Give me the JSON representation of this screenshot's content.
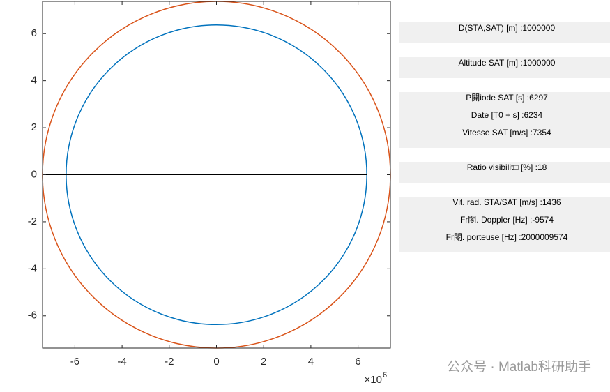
{
  "chart_data": {
    "type": "circle",
    "xlim": [
      -7.371,
      7.371
    ],
    "ylim": [
      -7.371,
      7.371
    ],
    "xticks": [
      -6,
      -4,
      -2,
      0,
      2,
      4,
      6
    ],
    "yticks": [
      -6,
      -4,
      -2,
      0,
      2,
      4,
      6
    ],
    "multiplier_base": "×10",
    "multiplier_exp": "6",
    "series": [
      {
        "color": "#0072bd",
        "radius": 6.371
      },
      {
        "color": "#d95319",
        "radius": 7.371
      }
    ],
    "line": {
      "color": "#000000",
      "x": [
        -7.371,
        6.371
      ],
      "y": [
        0,
        0
      ]
    }
  },
  "panels": [
    {
      "lines": [
        "D(STA,SAT) [m] :1000000"
      ]
    },
    {
      "lines": [
        "Altitude SAT [m] :1000000"
      ]
    },
    {
      "lines": [
        "P閞iode SAT [s] :6297",
        "Date [T0 + s] :6234",
        "Vitesse SAT [m/s] :7354"
      ]
    },
    {
      "lines": [
        "Ratio visibilit□ [%] :18"
      ]
    },
    {
      "lines": [
        "Vit. rad. STA/SAT [m/s] :1436",
        "Fr閝. Doppler [Hz] :-9574",
        "Fr閝. porteuse [Hz] :2000009574"
      ]
    }
  ],
  "watermark": "公众号 · Matlab科研助手"
}
